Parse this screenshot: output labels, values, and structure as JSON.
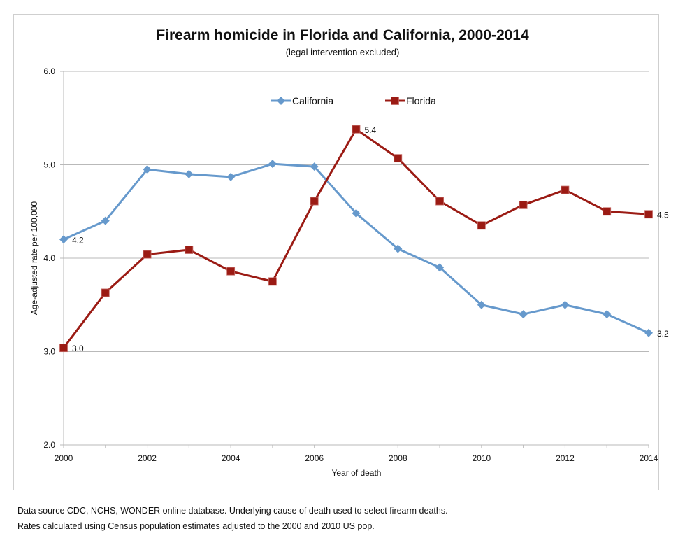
{
  "chart_data": {
    "type": "line",
    "title": "Firearm homicide in Florida and California, 2000-2014",
    "subtitle": "(legal intervention excluded)",
    "xlabel": "Year of death",
    "ylabel": "Age-adjusted rate per 100,000",
    "x": [
      2000,
      2001,
      2002,
      2003,
      2004,
      2005,
      2006,
      2007,
      2008,
      2009,
      2010,
      2011,
      2012,
      2013,
      2014
    ],
    "x_tick_labels": [
      "2000",
      "2002",
      "2004",
      "2006",
      "2008",
      "2010",
      "2012",
      "2014"
    ],
    "x_tick_values": [
      2000,
      2002,
      2004,
      2006,
      2008,
      2010,
      2012,
      2014
    ],
    "xlim": [
      2000,
      2014
    ],
    "ylim": [
      2.0,
      6.0
    ],
    "y_ticks": [
      2.0,
      3.0,
      4.0,
      5.0,
      6.0
    ],
    "y_tick_labels": [
      "2.0",
      "3.0",
      "4.0",
      "5.0",
      "6.0"
    ],
    "grid": "horizontal",
    "legend_position": "top-center",
    "series": [
      {
        "name": "California",
        "color": "#6699cc",
        "marker": "diamond",
        "values": [
          4.2,
          4.4,
          4.95,
          4.9,
          4.87,
          5.01,
          4.98,
          4.48,
          4.1,
          3.9,
          3.5,
          3.4,
          3.5,
          3.4,
          3.2
        ]
      },
      {
        "name": "Florida",
        "color": "#9b1b14",
        "marker": "square",
        "values": [
          3.04,
          3.63,
          4.04,
          4.09,
          3.86,
          3.75,
          4.61,
          5.38,
          5.07,
          4.61,
          4.35,
          4.57,
          4.73,
          4.5,
          4.47
        ]
      }
    ],
    "annotations": [
      {
        "series": "California",
        "x": 2000,
        "text": "4.2"
      },
      {
        "series": "California",
        "x": 2014,
        "text": "3.2"
      },
      {
        "series": "Florida",
        "x": 2000,
        "text": "3.0"
      },
      {
        "series": "Florida",
        "x": 2007,
        "text": "5.4"
      },
      {
        "series": "Florida",
        "x": 2014,
        "text": "4.5"
      }
    ]
  },
  "footnotes": [
    "Data source  CDC, NCHS, WONDER online database. Underlying cause of death used to select firearm deaths.",
    "Rates calculated using Census population estimates adjusted to the 2000 and 2010 US pop."
  ]
}
